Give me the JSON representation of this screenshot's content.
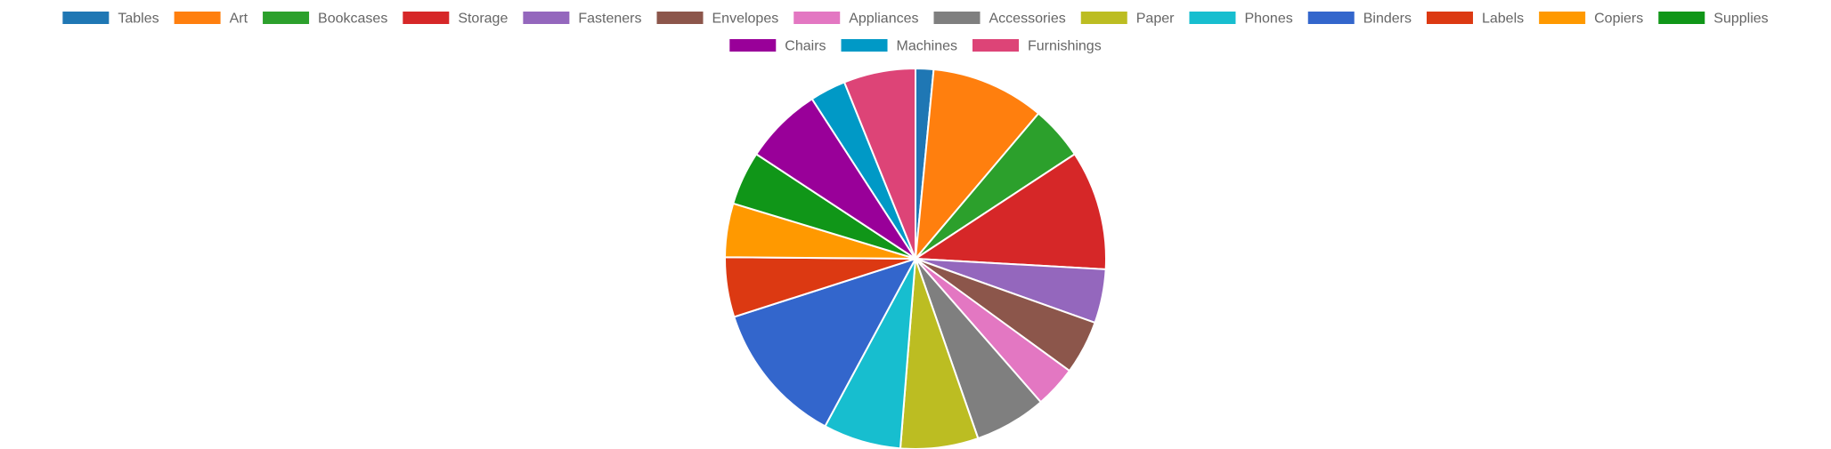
{
  "chart_data": {
    "type": "pie",
    "title": "",
    "legend_position": "top",
    "start_angle_deg": 0,
    "direction": "clockwise",
    "slices": [
      {
        "label": "Tables",
        "value": 1.5,
        "color": "#1f77b4"
      },
      {
        "label": "Art",
        "value": 9.5,
        "color": "#ff7f0e"
      },
      {
        "label": "Bookcases",
        "value": 4.5,
        "color": "#2ca02c"
      },
      {
        "label": "Storage",
        "value": 10.0,
        "color": "#d62728"
      },
      {
        "label": "Fasteners",
        "value": 4.5,
        "color": "#9467bd"
      },
      {
        "label": "Envelopes",
        "value": 4.5,
        "color": "#8c564b"
      },
      {
        "label": "Appliances",
        "value": 3.5,
        "color": "#e377c2"
      },
      {
        "label": "Accessories",
        "value": 6.0,
        "color": "#7f7f7f"
      },
      {
        "label": "Paper",
        "value": 6.5,
        "color": "#bcbd22"
      },
      {
        "label": "Phones",
        "value": 6.5,
        "color": "#17becf"
      },
      {
        "label": "Binders",
        "value": 12.0,
        "color": "#3366cc"
      },
      {
        "label": "Labels",
        "value": 5.0,
        "color": "#dc3912"
      },
      {
        "label": "Copiers",
        "value": 4.5,
        "color": "#ff9900"
      },
      {
        "label": "Supplies",
        "value": 4.5,
        "color": "#109618"
      },
      {
        "label": "Chairs",
        "value": 6.5,
        "color": "#990099"
      },
      {
        "label": "Machines",
        "value": 3.0,
        "color": "#0099c6"
      },
      {
        "label": "Furnishings",
        "value": 6.0,
        "color": "#dd4477"
      }
    ]
  }
}
